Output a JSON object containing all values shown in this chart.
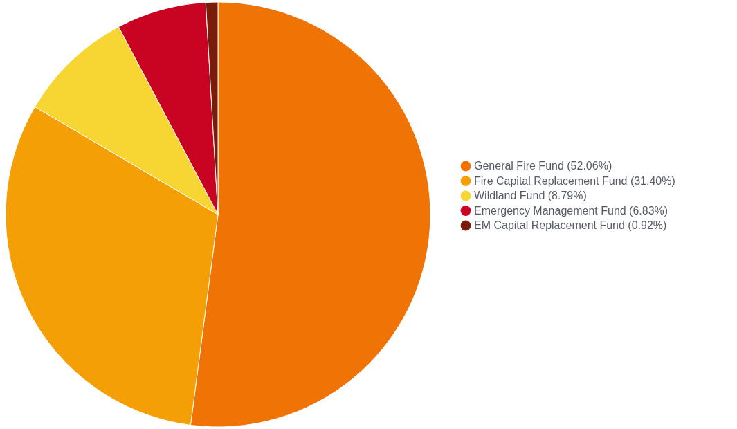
{
  "chart_data": {
    "type": "pie",
    "categories": [
      "General Fire Fund (52.06%)",
      "Fire Capital Replacement Fund (31.40%)",
      "Wildland Fund (8.79%)",
      "Emergency Management Fund (6.83%)",
      "EM Capital Replacement Fund (0.92%)"
    ],
    "values": [
      52.06,
      31.4,
      8.79,
      6.83,
      0.92
    ],
    "colors": [
      "#f07306",
      "#f59f06",
      "#f7d533",
      "#c90422",
      "#7a1c0a"
    ],
    "legend": "right"
  }
}
